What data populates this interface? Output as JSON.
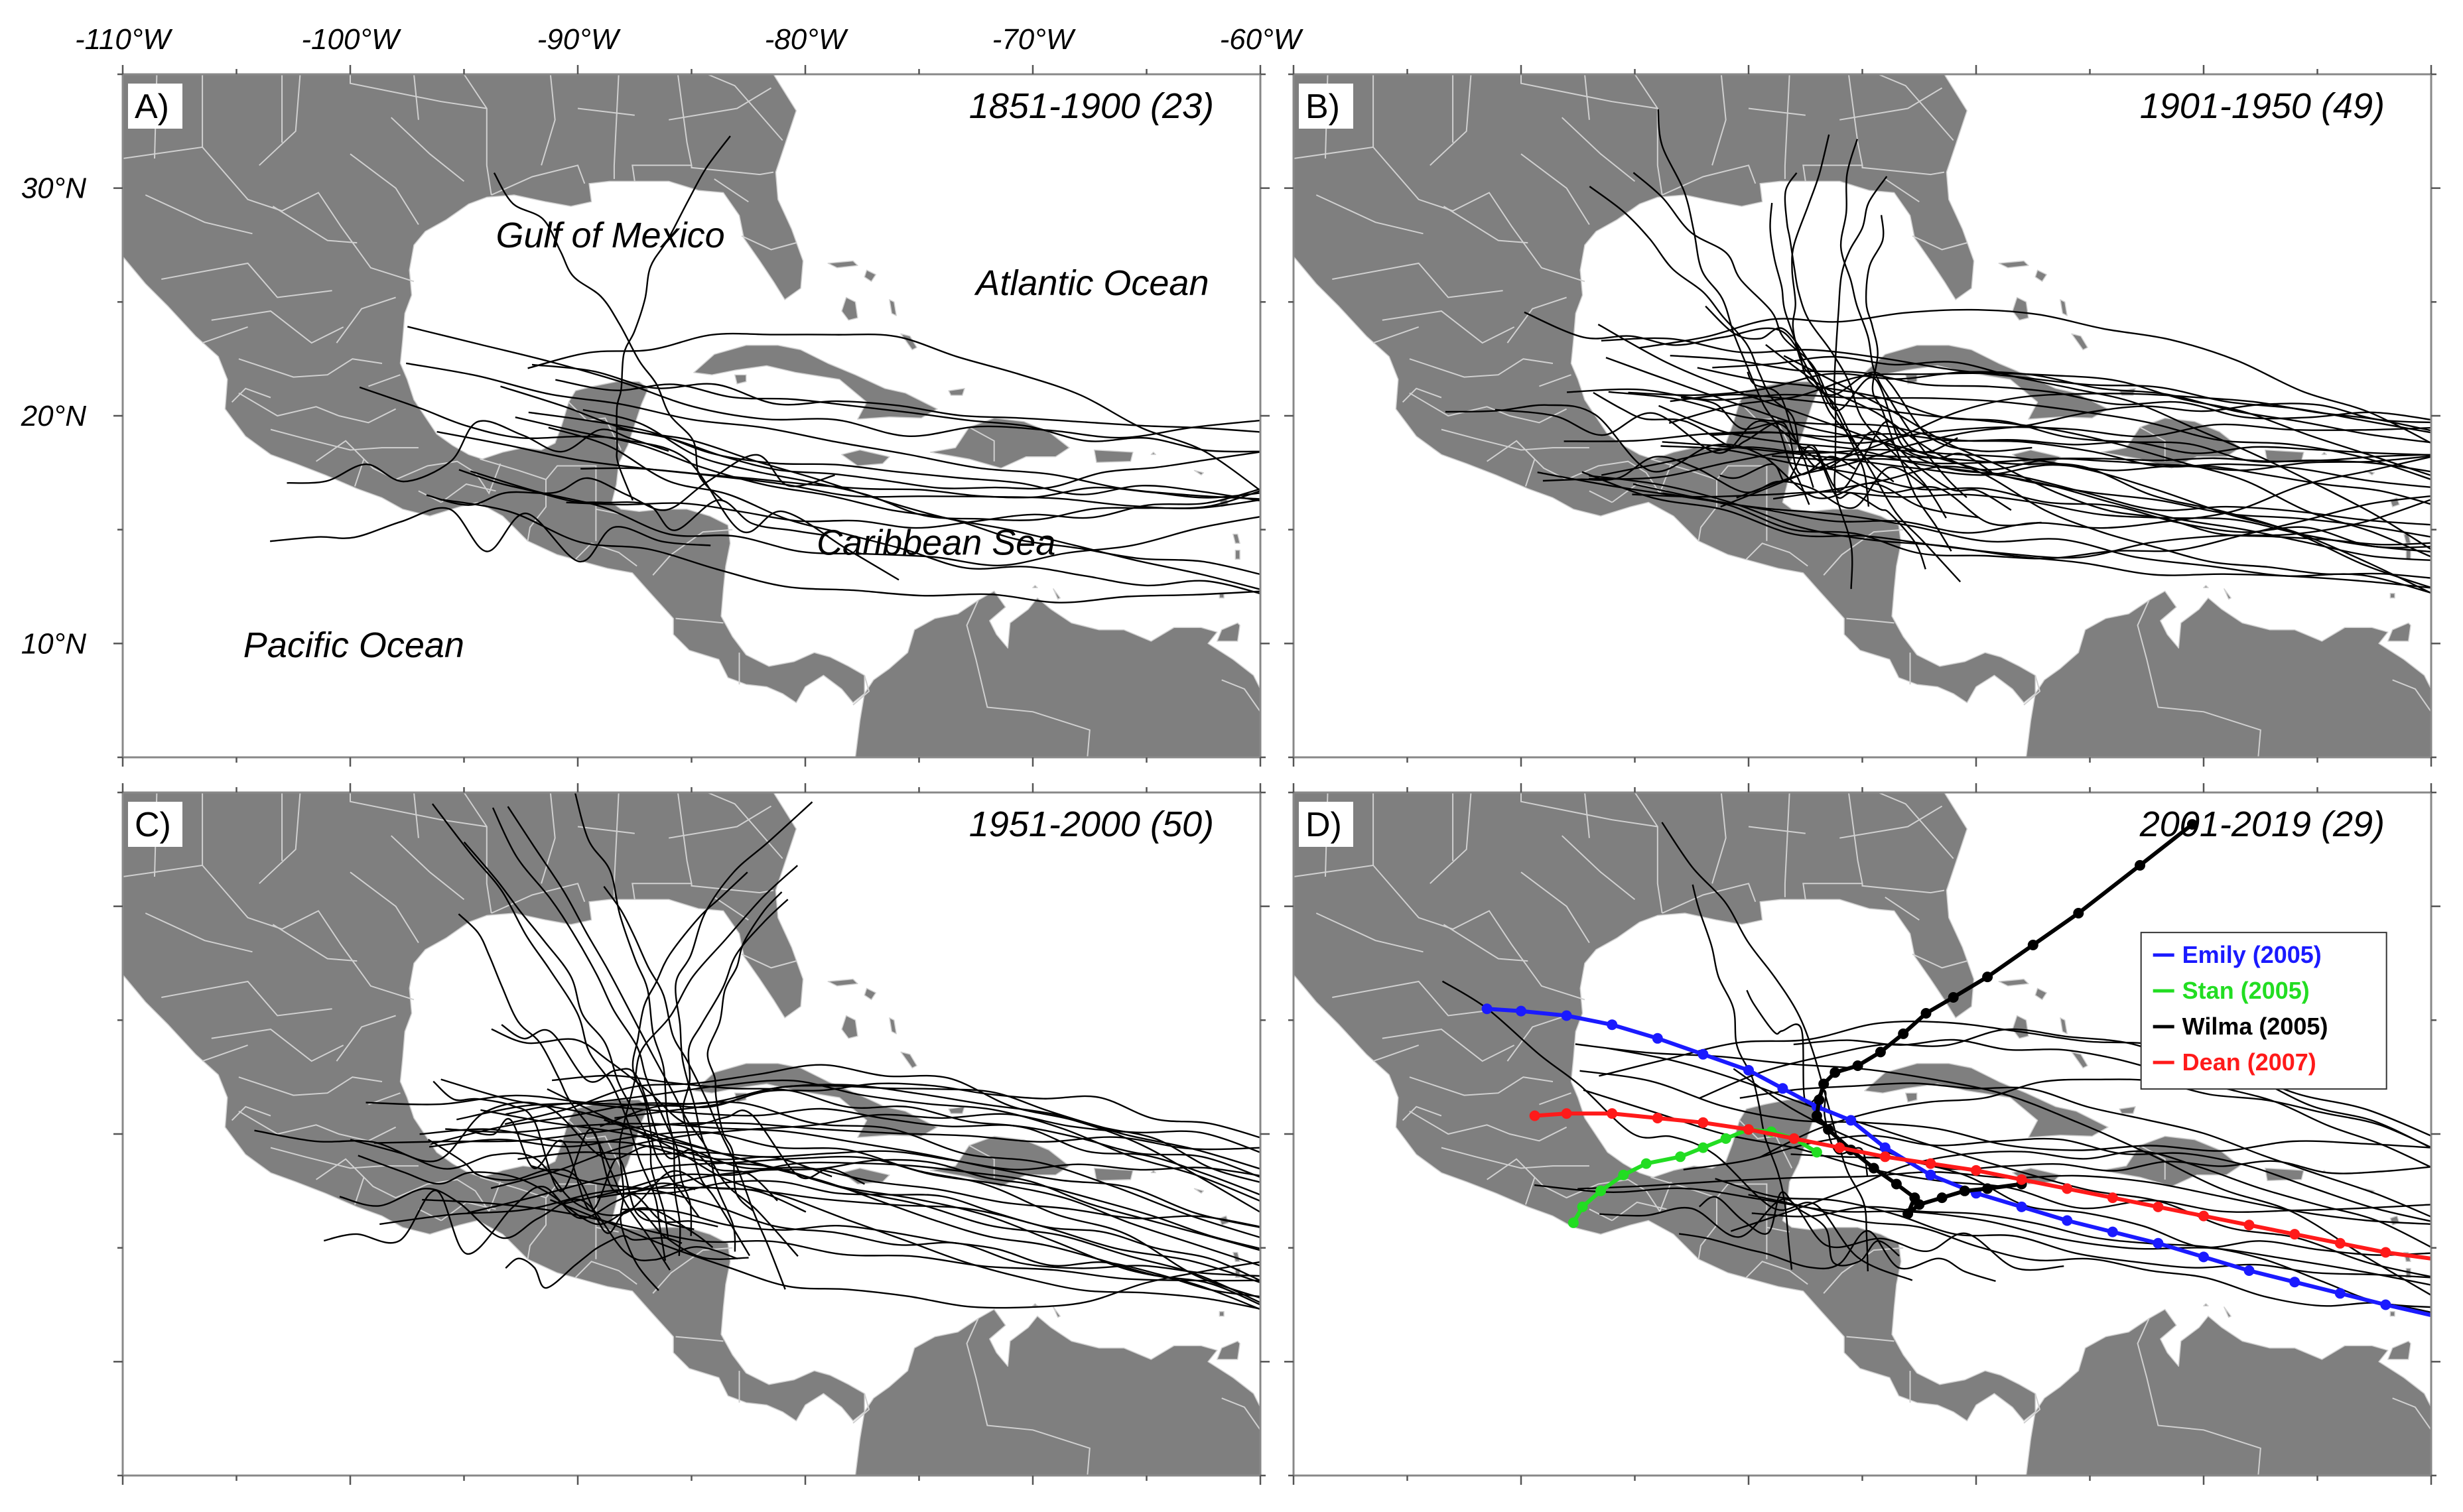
{
  "axes": {
    "lon_labels": [
      "-110°W",
      "-100°W",
      "-90°W",
      "-80°W",
      "-70°W",
      "-60°W"
    ],
    "lon_values": [
      -110,
      -100,
      -90,
      -80,
      -70,
      -60
    ],
    "lat_labels": [
      "30°N",
      "20°N",
      "10°N"
    ],
    "lat_values": [
      30,
      20,
      10
    ],
    "lon_range": [
      -110,
      -60
    ],
    "lat_range": [
      5,
      35
    ]
  },
  "colors": {
    "land": "#7f7f7f",
    "border": "#d0d0d0",
    "track": "#000000",
    "emily": "#1a1aff",
    "stan": "#22dd22",
    "wilma": "#000000",
    "dean": "#ff1a1a"
  },
  "panels": [
    {
      "label": "A)",
      "period": "1851-1900 (23)",
      "count": 23,
      "show_lat_labels": true,
      "show_lon_labels": true,
      "regions": [
        {
          "name": "Gulf of Mexico",
          "lon": -93.6,
          "lat": 27.4
        },
        {
          "name": "Atlantic Ocean",
          "lon": -72.5,
          "lat": 25.3
        },
        {
          "name": "Caribbean Sea",
          "lon": -79.5,
          "lat": 13.9
        },
        {
          "name": "Pacific Ocean",
          "lon": -104.7,
          "lat": 9.4
        }
      ]
    },
    {
      "label": "B)",
      "period": "1901-1950 (49)",
      "count": 49,
      "show_lat_labels": false,
      "show_lon_labels": false,
      "regions": []
    },
    {
      "label": "C)",
      "period": "1951-2000 (50)",
      "count": 50,
      "show_lat_labels": false,
      "show_lon_labels": false,
      "regions": []
    },
    {
      "label": "D)",
      "period": "2001-2019 (29)",
      "count": 29,
      "show_lat_labels": false,
      "show_lon_labels": false,
      "regions": []
    }
  ],
  "highlighted_tracks": [
    {
      "name": "Emily (2005)",
      "color": "emily",
      "points": [
        [
          -59.8,
          12.0
        ],
        [
          -62,
          12.5
        ],
        [
          -64,
          13.0
        ],
        [
          -66,
          13.5
        ],
        [
          -68,
          14.0
        ],
        [
          -70,
          14.6
        ],
        [
          -72,
          15.2
        ],
        [
          -74,
          15.7
        ],
        [
          -76,
          16.2
        ],
        [
          -78,
          16.8
        ],
        [
          -80,
          17.4
        ],
        [
          -82,
          18.2
        ],
        [
          -84,
          19.4
        ],
        [
          -85.5,
          20.6
        ],
        [
          -87,
          21.2
        ],
        [
          -88.5,
          22.0
        ],
        [
          -90,
          22.8
        ],
        [
          -92,
          23.5
        ],
        [
          -94,
          24.2
        ],
        [
          -96,
          24.8
        ],
        [
          -98,
          25.2
        ],
        [
          -100,
          25.4
        ],
        [
          -101.5,
          25.5
        ]
      ]
    },
    {
      "name": "Stan (2005)",
      "color": "stan",
      "points": [
        [
          -87.0,
          19.2
        ],
        [
          -88,
          19.8
        ],
        [
          -89,
          20.1
        ],
        [
          -90,
          20.2
        ],
        [
          -91,
          19.8
        ],
        [
          -92,
          19.4
        ],
        [
          -93,
          19.0
        ],
        [
          -94.5,
          18.7
        ],
        [
          -95.5,
          18.2
        ],
        [
          -96.5,
          17.5
        ],
        [
          -97.3,
          16.8
        ],
        [
          -97.7,
          16.1
        ]
      ]
    },
    {
      "name": "Wilma (2005)",
      "color": "wilma",
      "points": [
        [
          -78.0,
          17.8
        ],
        [
          -79.5,
          17.6
        ],
        [
          -80.5,
          17.5
        ],
        [
          -81.5,
          17.2
        ],
        [
          -82.5,
          16.9
        ],
        [
          -83,
          16.5
        ],
        [
          -82.7,
          17.2
        ],
        [
          -83.5,
          17.8
        ],
        [
          -84.5,
          18.5
        ],
        [
          -85.5,
          19.3
        ],
        [
          -86.5,
          20.2
        ],
        [
          -87.0,
          20.8
        ],
        [
          -86.9,
          21.5
        ],
        [
          -86.7,
          22.2
        ],
        [
          -86.2,
          22.7
        ],
        [
          -85.2,
          23.0
        ],
        [
          -84.2,
          23.6
        ],
        [
          -83.2,
          24.4
        ],
        [
          -82.2,
          25.3
        ],
        [
          -81.0,
          26.0
        ],
        [
          -79.5,
          26.9
        ],
        [
          -77.5,
          28.3
        ],
        [
          -75.5,
          29.7
        ],
        [
          -72.8,
          31.8
        ],
        [
          -70.5,
          33.6
        ]
      ]
    },
    {
      "name": "Dean (2007)",
      "color": "dean",
      "points": [
        [
          -59.8,
          14.5
        ],
        [
          -62,
          14.8
        ],
        [
          -64,
          15.2
        ],
        [
          -66,
          15.6
        ],
        [
          -68,
          16.0
        ],
        [
          -70,
          16.4
        ],
        [
          -72,
          16.8
        ],
        [
          -74,
          17.2
        ],
        [
          -76,
          17.6
        ],
        [
          -78,
          18.0
        ],
        [
          -80,
          18.4
        ],
        [
          -82,
          18.7
        ],
        [
          -84,
          19.0
        ],
        [
          -86,
          19.4
        ],
        [
          -88,
          19.8
        ],
        [
          -90,
          20.2
        ],
        [
          -92,
          20.5
        ],
        [
          -94,
          20.7
        ],
        [
          -96,
          20.9
        ],
        [
          -98,
          20.9
        ],
        [
          -99.4,
          20.8
        ]
      ]
    }
  ]
}
